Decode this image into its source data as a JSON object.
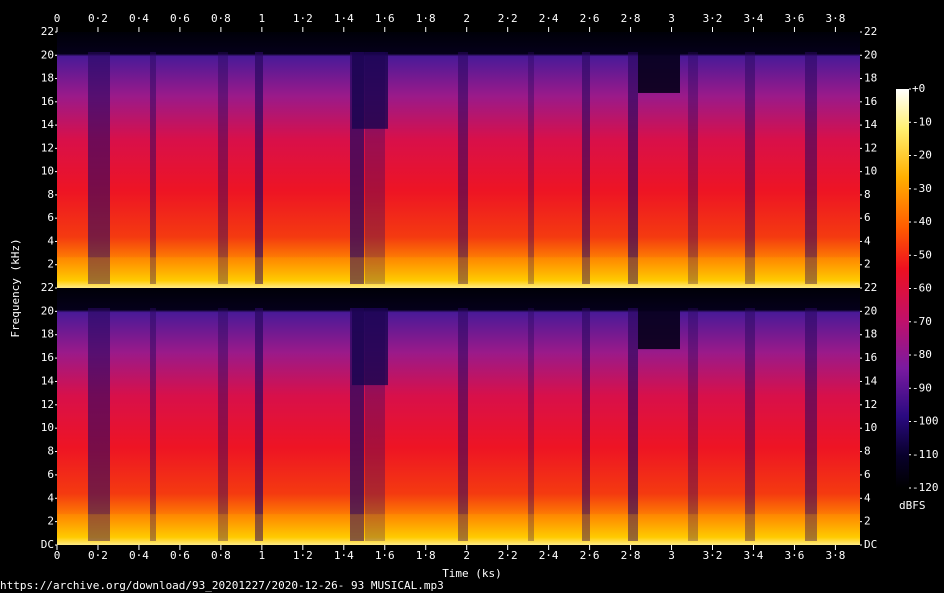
{
  "chart_data": {
    "type": "spectrogram",
    "xlabel": "Time (ks)",
    "ylabel": "Frequency (kHz)",
    "xlim": [
      0,
      3.92
    ],
    "xticks": [
      {
        "value": 0,
        "label": "0"
      },
      {
        "value": 0.2,
        "label": "0·2"
      },
      {
        "value": 0.4,
        "label": "0·4"
      },
      {
        "value": 0.6,
        "label": "0·6"
      },
      {
        "value": 0.8,
        "label": "0·8"
      },
      {
        "value": 1,
        "label": "1"
      },
      {
        "value": 1.2,
        "label": "1·2"
      },
      {
        "value": 1.4,
        "label": "1·4"
      },
      {
        "value": 1.6,
        "label": "1·6"
      },
      {
        "value": 1.8,
        "label": "1·8"
      },
      {
        "value": 2,
        "label": "2"
      },
      {
        "value": 2.2,
        "label": "2·2"
      },
      {
        "value": 2.4,
        "label": "2·4"
      },
      {
        "value": 2.6,
        "label": "2·6"
      },
      {
        "value": 2.8,
        "label": "2·8"
      },
      {
        "value": 3,
        "label": "3"
      },
      {
        "value": 3.2,
        "label": "3·2"
      },
      {
        "value": 3.4,
        "label": "3·4"
      },
      {
        "value": 3.6,
        "label": "3·6"
      },
      {
        "value": 3.8,
        "label": "3·8"
      }
    ],
    "ylim": [
      0,
      22
    ],
    "yticks": [
      {
        "value": 0,
        "label": "DC"
      },
      2,
      4,
      6,
      8,
      10,
      12,
      14,
      16,
      18,
      20,
      22
    ],
    "colorbar": {
      "label": "dBFS",
      "lim": [
        -120,
        0
      ],
      "ticks": [
        {
          "value": 0,
          "label": "+0"
        },
        -10,
        -20,
        -30,
        -40,
        -50,
        -60,
        -70,
        -80,
        -90,
        -100,
        -110,
        -120
      ]
    },
    "source": "https://archive.org/download/93_20201227/2020-12-26- 93 MUSICAL.mp3"
  }
}
